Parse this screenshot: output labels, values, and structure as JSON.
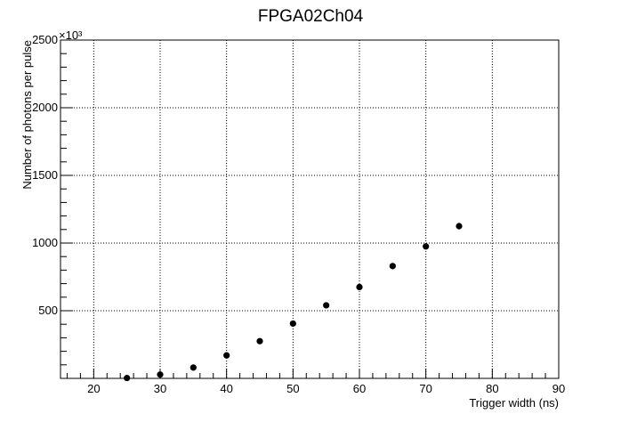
{
  "chart_data": {
    "type": "scatter",
    "title": "FPGA02Ch04",
    "xlabel": "Trigger width (ns)",
    "ylabel": "Number of photons per pulse",
    "y_multiplier_label": "×10³",
    "xlim": [
      15,
      90
    ],
    "ylim": [
      0,
      2500
    ],
    "x_ticks": [
      20,
      30,
      40,
      50,
      60,
      70,
      80,
      90
    ],
    "y_ticks": [
      500,
      1000,
      1500,
      2000,
      2500
    ],
    "grid": true,
    "grid_style": "dotted",
    "marker_color": "#000000",
    "series": [
      {
        "x": [
          25,
          30,
          35,
          40,
          45,
          50,
          55,
          60,
          65,
          70,
          75
        ],
        "y": [
          3,
          28,
          80,
          170,
          275,
          405,
          540,
          675,
          830,
          975,
          1125
        ],
        "yerr": [
          5,
          6,
          8,
          10,
          12,
          12,
          12,
          15,
          15,
          22,
          25
        ]
      }
    ]
  }
}
